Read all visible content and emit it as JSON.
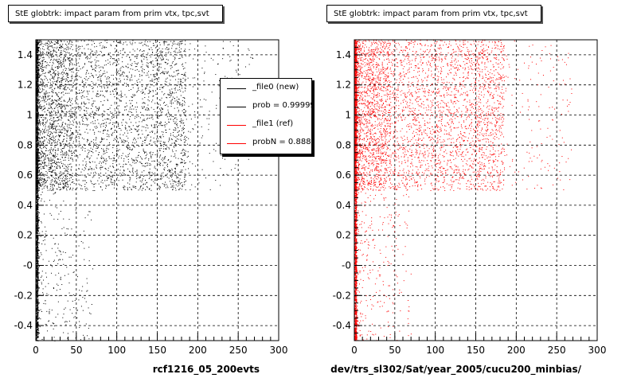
{
  "chart_data": [
    {
      "type": "scatter",
      "title": "StE globtrk: impact param from prim vtx, tpc,svt",
      "xlabel": "rcf1216_05_200evts",
      "ylabel": "",
      "xlim": [
        0,
        300
      ],
      "ylim": [
        -0.5,
        1.5
      ],
      "x_ticks": [
        "0",
        "50",
        "100",
        "150",
        "200",
        "250",
        "300"
      ],
      "y_ticks": [
        "-0.4",
        "-0.2",
        "-0",
        "0.2",
        "0.4",
        "0.6",
        "0.8",
        "1",
        "1.2",
        "1.4"
      ],
      "grid": true,
      "marker_color": "#000000",
      "legend": {
        "placement": "top-right",
        "entries": [
          {
            "label": "_file0 (new)",
            "color": "#000000"
          },
          {
            "label": "prob = 0.999992",
            "color": "#000000"
          },
          {
            "label": "_file1 (ref)",
            "color": "#ff0000"
          },
          {
            "label": "probN = 0.888920",
            "color": "#ff0000"
          }
        ]
      }
    },
    {
      "type": "scatter",
      "title": "StE globtrk: impact param from prim vtx, tpc,svt",
      "xlabel": "dev/trs_sl302/Sat/year_2005/cucu200_minbias/",
      "ylabel": "",
      "xlim": [
        0,
        300
      ],
      "ylim": [
        -0.5,
        1.5
      ],
      "x_ticks": [
        "0",
        "50",
        "100",
        "150",
        "200",
        "250",
        "300"
      ],
      "y_ticks": [
        "-0.4",
        "-0.2",
        "-0",
        "0.2",
        "0.4",
        "0.6",
        "0.8",
        "1",
        "1.2",
        "1.4"
      ],
      "grid": true,
      "marker_color": "#ff0000"
    }
  ]
}
